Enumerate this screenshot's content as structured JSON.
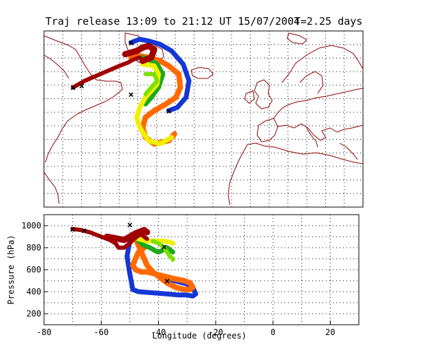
{
  "chart_data": [
    {
      "type": "map-trajectories",
      "title": "Traj release 13:09 to 21:12 UT 15/07/2004",
      "title_suffix": "T=2.25 days",
      "extent": {
        "lon": [
          -80,
          30
        ],
        "lat": [
          22,
          75
        ]
      },
      "grid": "dotted",
      "colors": {
        "blue": "#1437d6",
        "orange": "#ff6a00",
        "darkred": "#a00000",
        "green": "#1ea81e",
        "yellow": "#f0f000",
        "lime": "#7ce000",
        "bgframe": "#000000"
      },
      "tracks": [
        {
          "color": "blue",
          "points": [
            [
              -50,
              71.5
            ],
            [
              -47,
              72.5
            ],
            [
              -44,
              72
            ],
            [
              -40,
              71
            ],
            [
              -36,
              69
            ],
            [
              -32,
              65
            ],
            [
              -30,
              60
            ],
            [
              -31,
              55
            ],
            [
              -34,
              52
            ],
            [
              -37,
              51
            ]
          ],
          "width": 7
        },
        {
          "color": "orange",
          "points": [
            [
              -50,
              67
            ],
            [
              -47,
              67.5
            ],
            [
              -44,
              67
            ],
            [
              -40,
              66
            ],
            [
              -37,
              64.5
            ],
            [
              -33.5,
              62
            ],
            [
              -33,
              58
            ],
            [
              -34.5,
              55
            ],
            [
              -38,
              53
            ],
            [
              -42,
              51
            ],
            [
              -45,
              49
            ],
            [
              -46,
              46
            ],
            [
              -45,
              43
            ],
            [
              -42,
              41
            ],
            [
              -37,
              42
            ],
            [
              -35,
              44
            ]
          ],
          "width": 8
        },
        {
          "color": "green",
          "points": [
            [
              -46,
              67
            ],
            [
              -44,
              66.5
            ],
            [
              -41,
              65
            ],
            [
              -39,
              62
            ],
            [
              -40.5,
              58
            ],
            [
              -43,
              55
            ],
            [
              -45,
              53
            ]
          ],
          "width": 7
        },
        {
          "color": "yellow",
          "points": [
            [
              -46,
              65
            ],
            [
              -42,
              64.5
            ],
            [
              -40.5,
              62
            ],
            [
              -41,
              59
            ],
            [
              -43,
              57
            ],
            [
              -45,
              55
            ],
            [
              -47,
              52
            ],
            [
              -48,
              49
            ],
            [
              -47,
              46
            ],
            [
              -44,
              42
            ],
            [
              -40,
              41
            ],
            [
              -36,
              43
            ]
          ],
          "width": 7
        },
        {
          "color": "lime",
          "points": [
            [
              -45,
              62
            ],
            [
              -42,
              62
            ],
            [
              -41,
              60
            ],
            [
              -43,
              58
            ],
            [
              -45,
              56
            ]
          ],
          "width": 6
        },
        {
          "color": "darkred",
          "points": [
            [
              -70,
              58
            ],
            [
              -68,
              59
            ],
            [
              -66,
              60
            ],
            [
              -62,
              61.5
            ],
            [
              -58,
              63
            ],
            [
              -54,
              64.5
            ],
            [
              -51,
              65.5
            ],
            [
              -49,
              66.5
            ],
            [
              -47,
              67
            ]
          ],
          "width": 6
        },
        {
          "color": "darkred",
          "points": [
            [
              -52,
              68
            ],
            [
              -50,
              68.5
            ],
            [
              -48,
              69
            ],
            [
              -46,
              70
            ],
            [
              -44,
              70.5
            ],
            [
              -42,
              69.5
            ],
            [
              -43,
              67
            ],
            [
              -46,
              66
            ]
          ],
          "width": 9
        }
      ],
      "markers": [
        {
          "symbol": "×",
          "color": "darkred",
          "lon": -70,
          "lat": 58
        },
        {
          "symbol": "×",
          "color": "blue",
          "lon": -67,
          "lat": 58.5
        },
        {
          "symbol": "×",
          "color": "blue",
          "lon": -50,
          "lat": 71.5
        },
        {
          "symbol": "×",
          "color": "yellow",
          "lon": -50,
          "lat": 56
        },
        {
          "symbol": "×",
          "color": "blue",
          "lon": -37,
          "lat": 51
        }
      ]
    },
    {
      "type": "line",
      "xlabel": "Longitude  (degrees)",
      "ylabel": "Pressure  (hPa)",
      "xlim": [
        -80,
        30
      ],
      "ylim": [
        1100,
        100
      ],
      "xticks": [
        -80,
        -60,
        -40,
        -20,
        0,
        20
      ],
      "yticks": [
        200,
        400,
        600,
        800,
        1000
      ],
      "grid": "dotted",
      "series": [
        {
          "color": "blue",
          "x": [
            -50,
            -51,
            -50,
            -49,
            -47,
            -42,
            -37,
            -33,
            -30,
            -28,
            -27,
            -28,
            -30,
            -33,
            -36,
            -37
          ],
          "y": [
            860,
            720,
            560,
            420,
            400,
            390,
            380,
            370,
            370,
            360,
            380,
            440,
            470,
            490,
            510,
            500
          ],
          "width": 7
        },
        {
          "color": "orange",
          "x": [
            -48,
            -47,
            -46,
            -45,
            -44,
            -42,
            -40,
            -37,
            -34,
            -31,
            -29,
            -28,
            -29,
            -31,
            -35,
            -38,
            -41,
            -44,
            -46,
            -48,
            -49,
            -48,
            -47,
            -45
          ],
          "y": [
            880,
            820,
            760,
            700,
            640,
            580,
            540,
            480,
            440,
            420,
            420,
            440,
            480,
            500,
            520,
            540,
            560,
            580,
            580,
            600,
            640,
            700,
            760,
            800
          ],
          "width": 8
        },
        {
          "color": "green",
          "x": [
            -47,
            -45,
            -43,
            -41,
            -40,
            -39,
            -38,
            -37,
            -36,
            -35
          ],
          "y": [
            860,
            820,
            800,
            770,
            760,
            770,
            790,
            800,
            780,
            760
          ],
          "width": 7
        },
        {
          "color": "yellow",
          "x": [
            -49,
            -47,
            -44,
            -41,
            -38,
            -36,
            -35
          ],
          "y": [
            900,
            880,
            860,
            860,
            860,
            850,
            840
          ],
          "width": 7
        },
        {
          "color": "lime",
          "x": [
            -42,
            -40,
            -38,
            -37,
            -36,
            -35,
            -35
          ],
          "y": [
            860,
            840,
            800,
            760,
            720,
            700,
            690
          ],
          "width": 6
        },
        {
          "color": "darkred",
          "x": [
            -70,
            -67,
            -64,
            -62,
            -60,
            -58,
            -57,
            -55,
            -54,
            -53,
            -52,
            -51,
            -50,
            -49,
            -48,
            -47,
            -46,
            -45,
            -44
          ],
          "y": [
            970,
            960,
            940,
            920,
            900,
            880,
            870,
            840,
            800,
            800,
            800,
            820,
            840,
            870,
            890,
            910,
            920,
            900,
            880
          ],
          "width": 6
        },
        {
          "color": "darkred",
          "x": [
            -58,
            -56,
            -54,
            -52,
            -50,
            -48,
            -46,
            -45,
            -44
          ],
          "y": [
            900,
            890,
            880,
            870,
            900,
            930,
            950,
            960,
            940
          ],
          "width": 9
        }
      ],
      "markers": [
        {
          "symbol": "×",
          "color": "darkred",
          "x": -70,
          "y": 970
        },
        {
          "symbol": "×",
          "color": "blue",
          "x": -66,
          "y": 955
        },
        {
          "symbol": "×",
          "color": "yellow",
          "x": -50,
          "y": 1010
        },
        {
          "symbol": "×",
          "color": "blue",
          "x": -37,
          "y": 500
        },
        {
          "symbol": "×",
          "color": "green",
          "x": -38,
          "y": 810
        }
      ]
    }
  ]
}
